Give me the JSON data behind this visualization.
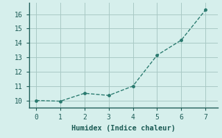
{
  "x": [
    0,
    1,
    2,
    3,
    4,
    5,
    6,
    7
  ],
  "y": [
    10.0,
    9.95,
    10.5,
    10.35,
    11.0,
    13.15,
    14.2,
    16.3
  ],
  "line_color": "#2a7a6f",
  "marker": "o",
  "marker_size": 2.5,
  "linewidth": 1.0,
  "linestyle": "--",
  "xlabel": "Humidex (Indice chaleur)",
  "xlabel_fontsize": 7.5,
  "tick_fontsize": 7,
  "xlim": [
    -0.3,
    7.5
  ],
  "ylim": [
    9.5,
    16.8
  ],
  "yticks": [
    10,
    11,
    12,
    13,
    14,
    15,
    16
  ],
  "xticks": [
    0,
    1,
    2,
    3,
    4,
    5,
    6,
    7
  ],
  "bg_color": "#d6efec",
  "grid_color": "#a8c8c4",
  "grid_linewidth": 0.7,
  "font_color": "#1a5a54",
  "spine_color": "#5a8a84",
  "spine_bottom_color": "#1a5a54"
}
